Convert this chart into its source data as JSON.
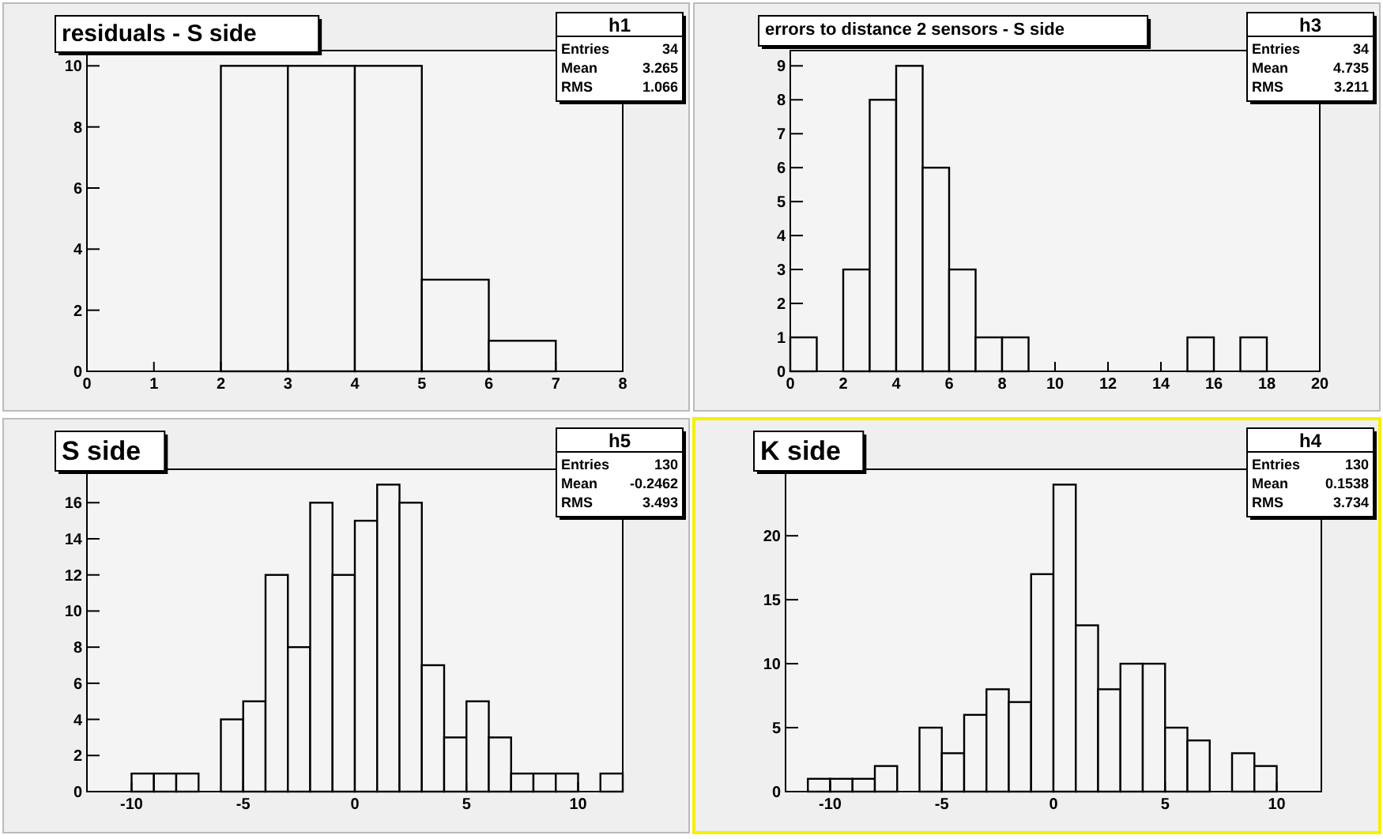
{
  "chart_data": [
    {
      "type": "histogram",
      "title": "residuals - S side",
      "bins": [
        0,
        1,
        2,
        3,
        4,
        5,
        6,
        7,
        8
      ],
      "values": [
        0,
        0,
        10,
        10,
        10,
        3,
        1,
        0
      ],
      "xlim": [
        0,
        8
      ],
      "xticks": [
        0,
        1,
        2,
        3,
        4,
        5,
        6,
        7,
        8
      ],
      "ylim": [
        0,
        10.5
      ],
      "yticks": [
        0,
        2,
        4,
        6,
        8,
        10
      ],
      "annotations": [
        "h1",
        "Entries 34",
        "Mean 3.265",
        "RMS 1.066"
      ]
    },
    {
      "type": "histogram",
      "title": "errors to distance 2 sensors - S side",
      "bins": [
        0,
        1,
        2,
        3,
        4,
        5,
        6,
        7,
        8,
        9,
        10,
        11,
        12,
        13,
        14,
        15,
        16,
        17,
        18,
        19,
        20
      ],
      "values": [
        1,
        0,
        3,
        8,
        9,
        6,
        3,
        1,
        1,
        0,
        0,
        0,
        0,
        0,
        0,
        1,
        0,
        1,
        0,
        0
      ],
      "xlim": [
        0,
        20
      ],
      "xticks": [
        0,
        2,
        4,
        6,
        8,
        10,
        12,
        14,
        16,
        18,
        20
      ],
      "ylim": [
        0,
        9.45
      ],
      "yticks": [
        0,
        1,
        2,
        3,
        4,
        5,
        6,
        7,
        8,
        9
      ],
      "annotations": [
        "h3",
        "Entries 34",
        "Mean 4.735",
        "RMS 3.211"
      ]
    },
    {
      "type": "histogram",
      "title": "S side",
      "bins": [
        -12,
        -11,
        -10,
        -9,
        -8,
        -7,
        -6,
        -5,
        -4,
        -3,
        -2,
        -1,
        0,
        1,
        2,
        3,
        4,
        5,
        6,
        7,
        8,
        9,
        10,
        11,
        12
      ],
      "values": [
        0,
        0,
        1,
        1,
        1,
        0,
        4,
        5,
        12,
        8,
        16,
        12,
        15,
        17,
        16,
        7,
        3,
        5,
        3,
        1,
        1,
        1,
        0,
        1
      ],
      "xlim": [
        -12,
        12
      ],
      "xticks": [
        -10,
        -5,
        0,
        5,
        10
      ],
      "ylim": [
        0,
        17.85
      ],
      "yticks": [
        0,
        2,
        4,
        6,
        8,
        10,
        12,
        14,
        16
      ],
      "annotations": [
        "h5",
        "Entries 130",
        "Mean -0.2462",
        "RMS 3.493"
      ]
    },
    {
      "type": "histogram",
      "title": "K side",
      "bins": [
        -12,
        -11,
        -10,
        -9,
        -8,
        -7,
        -6,
        -5,
        -4,
        -3,
        -2,
        -1,
        0,
        1,
        2,
        3,
        4,
        5,
        6,
        7,
        8,
        9,
        10,
        11,
        12
      ],
      "values": [
        0,
        1,
        1,
        1,
        2,
        0,
        5,
        3,
        6,
        8,
        7,
        17,
        24,
        13,
        8,
        10,
        10,
        5,
        4,
        0,
        3,
        2,
        0,
        0
      ],
      "xlim": [
        -12,
        12
      ],
      "xticks": [
        -10,
        -5,
        0,
        5,
        10
      ],
      "ylim": [
        0,
        25.2
      ],
      "yticks": [
        0,
        5,
        10,
        15,
        20
      ],
      "annotations": [
        "h4",
        "Entries 130",
        "Mean 0.1538",
        "RMS 3.734"
      ]
    }
  ]
}
